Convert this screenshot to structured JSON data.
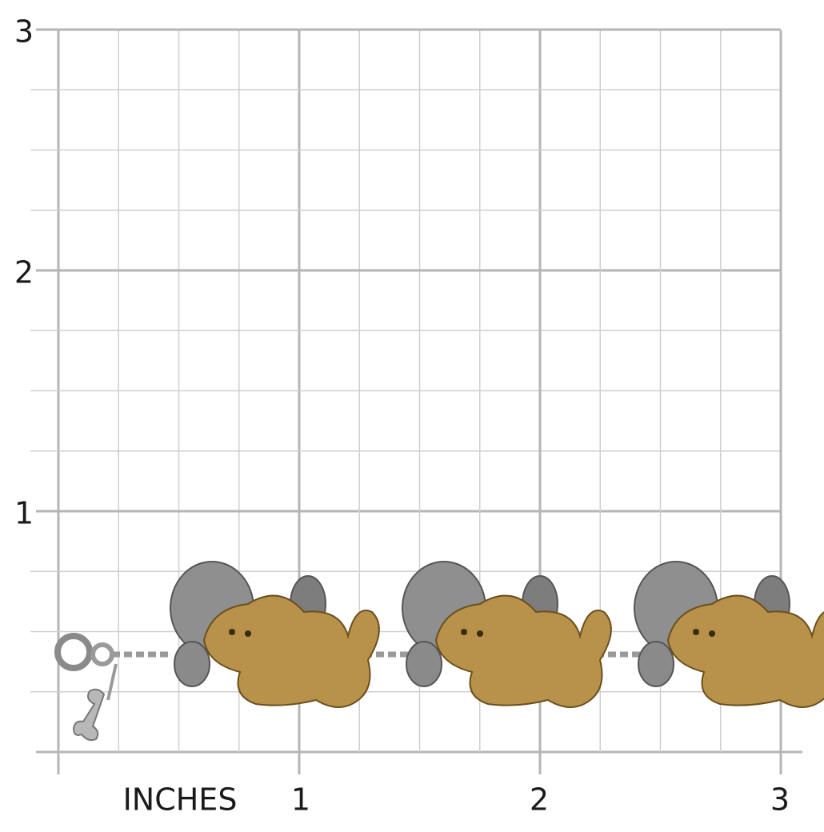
{
  "grid": {
    "left_labels": [
      "3",
      "2",
      "1"
    ],
    "bottom_labels": [
      "INCHES",
      "1",
      "2",
      "3"
    ]
  }
}
